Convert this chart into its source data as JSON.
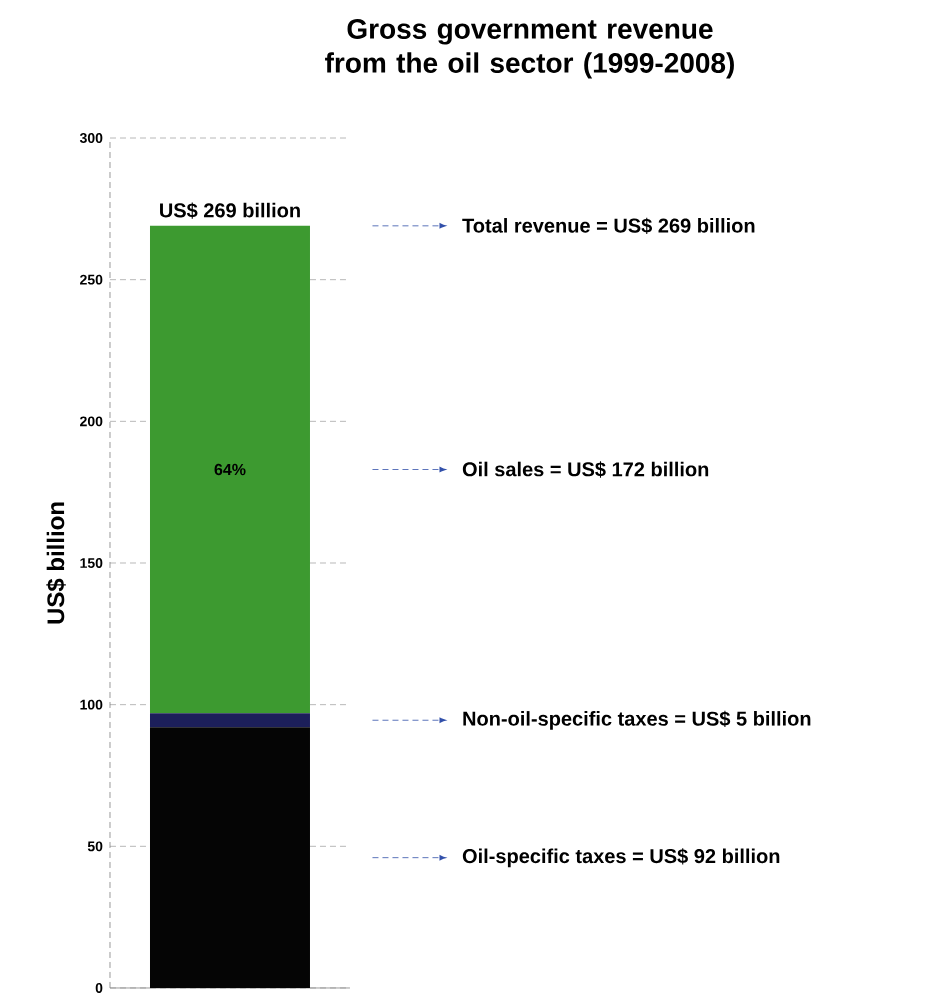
{
  "chart_data": {
    "type": "bar",
    "stacked": true,
    "title": "Gross government revenue from the oil sector (1999-2008)",
    "ylabel": "US$ billion",
    "categories": [
      null
    ],
    "series": [
      {
        "color": "#050505",
        "values": [
          92
        ]
      },
      {
        "color": "#1c1f5a",
        "values": [
          5
        ]
      },
      {
        "color": "#3d9a30",
        "values": [
          172
        ]
      }
    ],
    "totals": [
      "US$ 269 billion"
    ],
    "ylim": [
      0,
      300
    ],
    "yticks": [
      0,
      50,
      100,
      150,
      200,
      250,
      300
    ],
    "grid": "y",
    "annotations": [
      "Total revenue = US$ 269 billion",
      "Oil sales = US$ 172 billion",
      "Non-oil-specific taxes = US$ 5 billion",
      "Oil-specific taxes = US$ 92 billion",
      "64%"
    ]
  }
}
